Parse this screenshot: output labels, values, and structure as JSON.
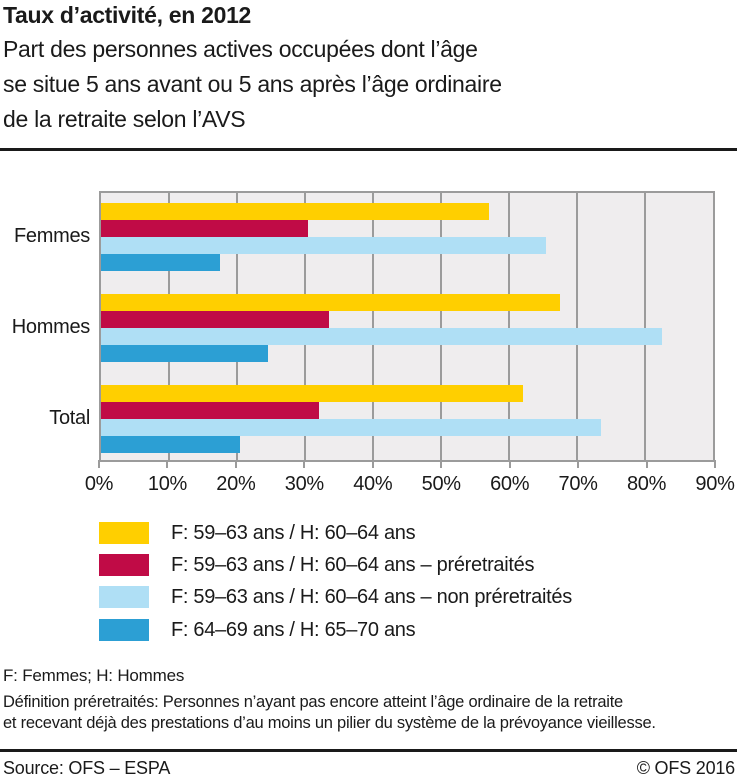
{
  "header": {
    "title": "Taux d’activité, en 2012",
    "subtitle_lines": [
      "Part des personnes actives occupées dont l’âge",
      "se situe 5 ans avant ou 5 ans après l’âge ordinaire",
      "de la retraite selon l’AVS"
    ]
  },
  "chart_data": {
    "type": "bar",
    "orientation": "horizontal",
    "categories": [
      "Femmes",
      "Hommes",
      "Total"
    ],
    "series": [
      {
        "name": "F: 59–63 ans / H: 60–64 ans",
        "color": "#FFCF00",
        "values": [
          57,
          67.5,
          62
        ]
      },
      {
        "name": "F: 59–63 ans / H: 60–64 ans – préretraités",
        "color": "#C00B46",
        "values": [
          30.5,
          33.5,
          32
        ]
      },
      {
        "name": "F: 59–63 ans / H: 60–64 ans – non préretraités",
        "color": "#AFDFF5",
        "values": [
          65.5,
          82.5,
          73.5
        ]
      },
      {
        "name": "F: 64–69 ans / H: 65–70 ans",
        "color": "#2C9FD4",
        "values": [
          17.5,
          24.5,
          20.5
        ]
      }
    ],
    "xlim": [
      0,
      90
    ],
    "x_tick_labels": [
      "0%",
      "10%",
      "20%",
      "30%",
      "40%",
      "50%",
      "60%",
      "70%",
      "80%",
      "90%"
    ],
    "grid": true,
    "legend_position": "bottom-left",
    "plot_background": "#EFEDEE",
    "grid_color": "#9B9B9B"
  },
  "footnotes": {
    "abbreviation": "F: Femmes; H: Hommes",
    "definition_lines": [
      "Définition préretraités: Personnes n’ayant pas encore atteint l’âge ordinaire de la retraite",
      "et recevant déjà des prestations d’au moins un pilier du système de la prévoyance vieillesse."
    ]
  },
  "footer": {
    "source": "Source: OFS – ESPA",
    "copyright": "© OFS 2016"
  },
  "colors": {
    "text": "#1A1A1A",
    "divider": "#1A1A1A"
  }
}
